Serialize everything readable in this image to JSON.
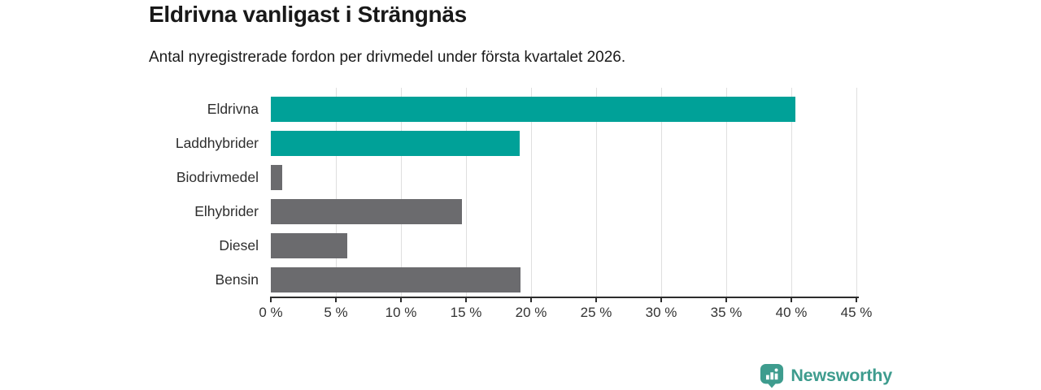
{
  "header": {
    "title": "Eldrivna vanligast i Strängnäs",
    "subtitle": "Antal nyregistrerade fordon per drivmedel under första kvartalet 2026."
  },
  "chart_data": {
    "type": "bar",
    "orientation": "horizontal",
    "title": "Eldrivna vanligast i Strängnäs",
    "subtitle": "Antal nyregistrerade fordon per drivmedel under första kvartalet 2026.",
    "categories": [
      "Eldrivna",
      "Laddhybrider",
      "Biodrivmedel",
      "Elhybrider",
      "Diesel",
      "Bensin"
    ],
    "values": [
      40.3,
      19.1,
      0.9,
      14.7,
      5.9,
      19.2
    ],
    "unit": "%",
    "bar_colors": [
      "#00a198",
      "#00a198",
      "#6b6b6e",
      "#6b6b6e",
      "#6b6b6e",
      "#6b6b6e"
    ],
    "xlabel": "",
    "ylabel": "",
    "xlim": [
      0,
      45
    ],
    "x_tick_step": 5,
    "x_tick_labels": [
      "0 %",
      "5 %",
      "10 %",
      "15 %",
      "20 %",
      "25 %",
      "30 %",
      "35 %",
      "40 %",
      "45 %"
    ],
    "grid": true,
    "legend": false
  },
  "footer": {
    "brand": "Newsworthy",
    "brand_color": "#3e9c8e"
  },
  "colors": {
    "highlight_bar": "#00a198",
    "default_bar": "#6b6b6e",
    "gridline": "#dfdfdf",
    "axis": "#2d2d2d",
    "logo_teal": "#3e9c8e"
  }
}
